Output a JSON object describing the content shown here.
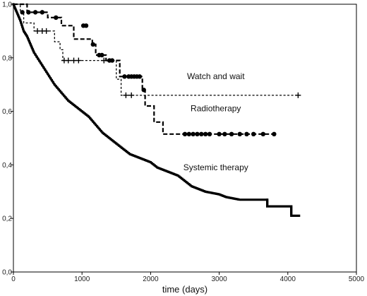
{
  "chart_data": {
    "type": "line",
    "title": "",
    "xlabel": "time (days)",
    "ylabel": "",
    "xlim": [
      0,
      5000
    ],
    "ylim": [
      0,
      1
    ],
    "grid": false,
    "legend": "none",
    "x_ticks": [
      {
        "value": 0,
        "label": "0"
      },
      {
        "value": 1000,
        "label": "1000"
      },
      {
        "value": 2000,
        "label": "2000"
      },
      {
        "value": 3000,
        "label": "3000"
      },
      {
        "value": 4000,
        "label": "4000"
      },
      {
        "value": 5000,
        "label": "5000"
      }
    ],
    "y_ticks": [
      {
        "value": 0,
        "label": "0,0"
      },
      {
        "value": 0.2,
        "label": "0,2"
      },
      {
        "value": 0.4,
        "label": "0,4"
      },
      {
        "value": 0.6,
        "label": "0,6"
      },
      {
        "value": 0.8,
        "label": "0,8"
      },
      {
        "value": 1,
        "label": "1,0"
      }
    ],
    "series": [
      {
        "name": "Watch and wait",
        "style": "dotted",
        "censor_marker": "plus",
        "points": [
          [
            0,
            1.0
          ],
          [
            100,
            1.0
          ],
          [
            100,
            0.97
          ],
          [
            150,
            0.97
          ],
          [
            150,
            0.93
          ],
          [
            300,
            0.93
          ],
          [
            300,
            0.9
          ],
          [
            600,
            0.9
          ],
          [
            600,
            0.86
          ],
          [
            680,
            0.86
          ],
          [
            680,
            0.83
          ],
          [
            720,
            0.83
          ],
          [
            720,
            0.79
          ],
          [
            1500,
            0.79
          ],
          [
            1500,
            0.72
          ],
          [
            1570,
            0.72
          ],
          [
            1570,
            0.66
          ],
          [
            4170,
            0.66
          ]
        ],
        "censored": [
          [
            350,
            0.9
          ],
          [
            420,
            0.9
          ],
          [
            480,
            0.9
          ],
          [
            740,
            0.79
          ],
          [
            800,
            0.79
          ],
          [
            880,
            0.79
          ],
          [
            950,
            0.79
          ],
          [
            1320,
            0.79
          ],
          [
            1640,
            0.66
          ],
          [
            1720,
            0.66
          ],
          [
            4150,
            0.66
          ]
        ]
      },
      {
        "name": "Radiotherapy",
        "style": "dashed",
        "censor_marker": "dot",
        "points": [
          [
            0,
            1.0
          ],
          [
            200,
            1.0
          ],
          [
            200,
            0.97
          ],
          [
            500,
            0.97
          ],
          [
            500,
            0.95
          ],
          [
            700,
            0.95
          ],
          [
            700,
            0.92
          ],
          [
            880,
            0.92
          ],
          [
            880,
            0.87
          ],
          [
            1150,
            0.87
          ],
          [
            1150,
            0.85
          ],
          [
            1200,
            0.85
          ],
          [
            1200,
            0.81
          ],
          [
            1350,
            0.81
          ],
          [
            1350,
            0.79
          ],
          [
            1550,
            0.79
          ],
          [
            1550,
            0.73
          ],
          [
            1880,
            0.73
          ],
          [
            1880,
            0.68
          ],
          [
            1920,
            0.68
          ],
          [
            1920,
            0.62
          ],
          [
            2050,
            0.62
          ],
          [
            2050,
            0.56
          ],
          [
            2180,
            0.56
          ],
          [
            2180,
            0.515
          ],
          [
            3850,
            0.515
          ]
        ],
        "censored": [
          [
            130,
            0.97
          ],
          [
            220,
            0.97
          ],
          [
            320,
            0.97
          ],
          [
            420,
            0.97
          ],
          [
            620,
            0.95
          ],
          [
            1020,
            0.92
          ],
          [
            1060,
            0.92
          ],
          [
            1160,
            0.85
          ],
          [
            1250,
            0.81
          ],
          [
            1290,
            0.81
          ],
          [
            1400,
            0.79
          ],
          [
            1440,
            0.79
          ],
          [
            1620,
            0.73
          ],
          [
            1680,
            0.73
          ],
          [
            1720,
            0.73
          ],
          [
            1760,
            0.73
          ],
          [
            1800,
            0.73
          ],
          [
            1840,
            0.73
          ],
          [
            1900,
            0.68
          ],
          [
            2500,
            0.515
          ],
          [
            2560,
            0.515
          ],
          [
            2620,
            0.515
          ],
          [
            2680,
            0.515
          ],
          [
            2740,
            0.515
          ],
          [
            2800,
            0.515
          ],
          [
            2860,
            0.515
          ],
          [
            3000,
            0.515
          ],
          [
            3080,
            0.515
          ],
          [
            3180,
            0.515
          ],
          [
            3300,
            0.515
          ],
          [
            3400,
            0.515
          ],
          [
            3500,
            0.515
          ],
          [
            3640,
            0.515
          ],
          [
            3800,
            0.515
          ]
        ]
      },
      {
        "name": "Systemic therapy",
        "style": "solid-bold",
        "censor_marker": "none",
        "points": [
          [
            0,
            1.0
          ],
          [
            50,
            0.97
          ],
          [
            100,
            0.94
          ],
          [
            150,
            0.9
          ],
          [
            200,
            0.88
          ],
          [
            250,
            0.85
          ],
          [
            300,
            0.82
          ],
          [
            400,
            0.78
          ],
          [
            500,
            0.74
          ],
          [
            600,
            0.7
          ],
          [
            700,
            0.67
          ],
          [
            800,
            0.64
          ],
          [
            900,
            0.62
          ],
          [
            1000,
            0.6
          ],
          [
            1100,
            0.58
          ],
          [
            1200,
            0.55
          ],
          [
            1300,
            0.52
          ],
          [
            1400,
            0.5
          ],
          [
            1500,
            0.48
          ],
          [
            1600,
            0.46
          ],
          [
            1700,
            0.44
          ],
          [
            1800,
            0.43
          ],
          [
            1900,
            0.42
          ],
          [
            2000,
            0.41
          ],
          [
            2100,
            0.39
          ],
          [
            2200,
            0.38
          ],
          [
            2300,
            0.37
          ],
          [
            2400,
            0.36
          ],
          [
            2500,
            0.34
          ],
          [
            2600,
            0.32
          ],
          [
            2700,
            0.31
          ],
          [
            2800,
            0.3
          ],
          [
            2900,
            0.295
          ],
          [
            3000,
            0.29
          ],
          [
            3100,
            0.28
          ],
          [
            3200,
            0.275
          ],
          [
            3300,
            0.27
          ],
          [
            3700,
            0.27
          ],
          [
            3700,
            0.245
          ],
          [
            4050,
            0.245
          ],
          [
            4050,
            0.21
          ],
          [
            4180,
            0.21
          ]
        ],
        "censored": []
      }
    ],
    "annotations": [
      {
        "text": "Watch and wait",
        "x": 2950,
        "y": 0.72
      },
      {
        "text": "Radiotherapy",
        "x": 2950,
        "y": 0.6
      },
      {
        "text": "Systemic therapy",
        "x": 2950,
        "y": 0.38
      }
    ]
  }
}
